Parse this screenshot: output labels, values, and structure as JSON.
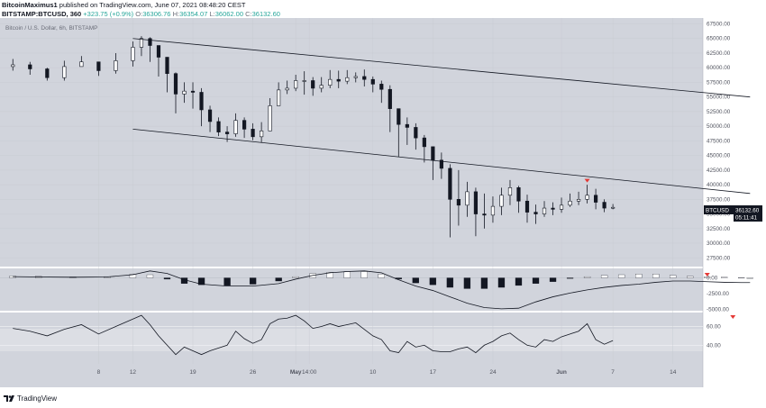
{
  "header": {
    "author": "BitcoinMaximus1",
    "published_text": "published on TradingView.com, June 07, 2021 08:48:20 CEST",
    "symbol_line": "BITSTAMP:BTCUSD, 360",
    "open_label": "O:",
    "open": "36306.76",
    "high_label": "H:",
    "high": "36354.07",
    "low_label": "L:",
    "low": "36062.00",
    "close_label": "C:",
    "close": "36132.60",
    "change": "+323.75 (+0.9%)"
  },
  "legend": "Bitcoin / U.S. Dollar, 6h, BITSTAMP",
  "price_badge": {
    "symbol": "BTCUSD",
    "price": "36132.60",
    "countdown": "05:11:41"
  },
  "footer": {
    "brand": "TradingView"
  },
  "colors": {
    "background": "#d1d4dc",
    "candle": "#131722",
    "signal": "#e53935",
    "badge": "#131722"
  },
  "chart_data": {
    "type": "line",
    "price_axis": {
      "ticks": [
        27500,
        30000,
        32500,
        35000,
        37500,
        40000,
        42500,
        45000,
        47500,
        50000,
        52500,
        55000,
        57500,
        60000,
        62500,
        65000,
        67500
      ],
      "tick_labels": [
        "27500.00",
        "30000.00",
        "32500.00",
        "35000.00",
        "37500.00",
        "40000.00",
        "42500.00",
        "45000.00",
        "47500.00",
        "50000.00",
        "52500.00",
        "55000.00",
        "57500.00",
        "60000.00",
        "62500.00",
        "65000.00",
        "67500.00"
      ],
      "ylim": [
        26000,
        68500
      ]
    },
    "time_axis": {
      "ticks": [
        "8",
        "12",
        "19",
        "26",
        "May",
        "14:00",
        "10",
        "17",
        "24",
        "Jun",
        "7",
        "14"
      ],
      "tick_days": [
        -23,
        -19,
        -12,
        -5,
        0,
        1.58,
        9,
        16,
        23,
        31,
        37,
        44
      ]
    },
    "price_series": {
      "days": [
        -33,
        -31,
        -29,
        -27,
        -25,
        -23,
        -21,
        -19,
        -18,
        -17,
        -16,
        -15,
        -14,
        -13,
        -12,
        -11,
        -10,
        -9,
        -8,
        -7,
        -6,
        -5,
        -4,
        -3,
        -2,
        -1,
        0,
        1,
        2,
        3,
        4,
        5,
        6,
        7,
        8,
        9,
        10,
        11,
        12,
        13,
        14,
        15,
        16,
        17,
        18,
        19,
        20,
        21,
        22,
        23,
        24,
        25,
        26,
        27,
        28,
        29,
        30,
        31,
        32,
        33,
        34,
        35,
        36,
        37
      ],
      "close": [
        60500,
        59800,
        58300,
        60200,
        61000,
        59500,
        61200,
        63500,
        65000,
        63800,
        61800,
        59000,
        55500,
        56000,
        55800,
        52800,
        50800,
        49000,
        48700,
        51000,
        49500,
        48200,
        49200,
        53500,
        56200,
        56500,
        57800,
        57800,
        56500,
        57000,
        58000,
        57700,
        58300,
        58500,
        58000,
        57200,
        56300,
        53000,
        50300,
        49800,
        48000,
        46500,
        44200,
        42800,
        37500,
        36500,
        38800,
        35000,
        34800,
        36300,
        38200,
        39500,
        37200,
        35300,
        35000,
        36000,
        35800,
        36500,
        37200,
        37500,
        38200,
        37000,
        36000,
        36132.6
      ],
      "high": [
        61500,
        61000,
        60000,
        61200,
        62000,
        61000,
        62500,
        64500,
        65400,
        65200,
        63500,
        61500,
        59200,
        57500,
        57500,
        56500,
        53500,
        51500,
        50000,
        52200,
        51500,
        50500,
        50700,
        54800,
        57500,
        57800,
        58800,
        59400,
        58400,
        58400,
        59600,
        59500,
        59600,
        59200,
        59700,
        58500,
        57800,
        57000,
        52500,
        51500,
        50500,
        48500,
        46500,
        45500,
        43500,
        42500,
        40500,
        39500,
        38500,
        38000,
        39500,
        40800,
        39800,
        38300,
        36600,
        37200,
        37000,
        37800,
        38500,
        38800,
        40000,
        39300,
        37500,
        36700
      ],
      "low": [
        59500,
        58800,
        57800,
        57800,
        60200,
        58600,
        59000,
        60200,
        62000,
        61000,
        58500,
        55800,
        52200,
        54000,
        53000,
        50000,
        49000,
        48300,
        47300,
        48200,
        48000,
        47600,
        47200,
        49500,
        53600,
        55500,
        56000,
        55400,
        55200,
        55800,
        56500,
        56500,
        57200,
        57500,
        56800,
        55800,
        54000,
        49000,
        44800,
        46800,
        46000,
        43800,
        40800,
        41000,
        31000,
        33000,
        34500,
        31200,
        32500,
        33500,
        34800,
        36500,
        35200,
        33500,
        33300,
        34500,
        34800,
        35200,
        36200,
        36500,
        36800,
        35800,
        35300,
        35800
      ]
    },
    "channel_upper": [
      [
        -19,
        65000
      ],
      [
        53,
        55000
      ]
    ],
    "channel_lower": [
      [
        -19,
        49500
      ],
      [
        53,
        38500
      ]
    ],
    "signal_markers": [
      {
        "day": 34,
        "pane": "price"
      },
      {
        "day": 48,
        "pane": "oscillator"
      },
      {
        "day": 51,
        "pane": "rsi"
      }
    ],
    "oscillator": {
      "label": "",
      "ticks": [
        0,
        -2500,
        -5000
      ],
      "tick_labels": [
        "0.00",
        "-2500.00",
        "-5000.00"
      ],
      "ylim": [
        -5200,
        1500
      ],
      "days": [
        -33,
        -30,
        -26,
        -22,
        -19,
        -17,
        -15,
        -13,
        -11,
        -8,
        -5,
        -2,
        0,
        2,
        4,
        6,
        8,
        10,
        12,
        14,
        16,
        18,
        20,
        22,
        24,
        26,
        28,
        30,
        32,
        34,
        36,
        38,
        40,
        42,
        44,
        46,
        48,
        50,
        52,
        53
      ],
      "histogram": [
        300,
        250,
        150,
        200,
        600,
        500,
        -200,
        -900,
        -1100,
        -1200,
        -1000,
        -500,
        200,
        700,
        900,
        1000,
        1000,
        600,
        -200,
        -800,
        -1100,
        -1500,
        -1700,
        -1700,
        -1500,
        -1200,
        -900,
        -600,
        -100,
        200,
        400,
        500,
        600,
        600,
        400,
        250,
        150,
        100,
        50,
        0
      ],
      "line": [
        200,
        150,
        100,
        150,
        500,
        1100,
        700,
        -300,
        -1000,
        -1300,
        -1300,
        -900,
        -200,
        400,
        800,
        1000,
        1100,
        800,
        -300,
        -1300,
        -2000,
        -3000,
        -4000,
        -4700,
        -4900,
        -4800,
        -3800,
        -3000,
        -2400,
        -1900,
        -1500,
        -1200,
        -1000,
        -700,
        -500,
        -500,
        -600,
        -700,
        -750,
        -750
      ]
    },
    "rsi": {
      "label": "",
      "ticks": [
        60,
        40
      ],
      "tick_labels": [
        "60.00",
        "40.00"
      ],
      "ylim": [
        20,
        75
      ],
      "days": [
        -33,
        -31,
        -29,
        -27,
        -25,
        -23,
        -21,
        -19,
        -18,
        -17,
        -16,
        -15,
        -14,
        -13,
        -12,
        -11,
        -10,
        -9,
        -8,
        -7,
        -6,
        -5,
        -4,
        -3,
        -2,
        -1,
        0,
        1,
        2,
        3,
        4,
        5,
        6,
        7,
        8,
        9,
        10,
        11,
        12,
        13,
        14,
        15,
        16,
        17,
        18,
        19,
        20,
        21,
        22,
        23,
        24,
        25,
        26,
        27,
        28,
        29,
        30,
        31,
        32,
        33,
        34,
        35,
        36,
        37
      ],
      "values": [
        58,
        55,
        50,
        57,
        62,
        52,
        60,
        68,
        72,
        62,
        50,
        40,
        30,
        38,
        34,
        30,
        34,
        37,
        40,
        55,
        47,
        42,
        46,
        63,
        68,
        69,
        72,
        66,
        58,
        60,
        63,
        60,
        62,
        64,
        57,
        50,
        46,
        34,
        32,
        44,
        38,
        40,
        34,
        33,
        33,
        36,
        38,
        32,
        40,
        44,
        50,
        53,
        46,
        40,
        38,
        46,
        44,
        49,
        52,
        55,
        63,
        46,
        41,
        45
      ]
    }
  }
}
